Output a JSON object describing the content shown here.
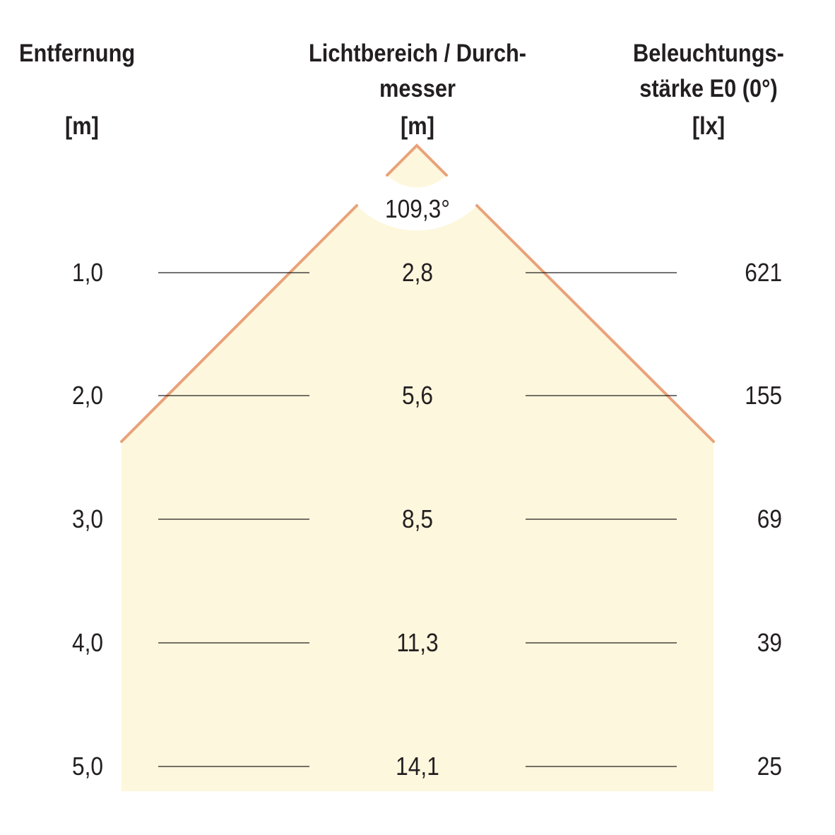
{
  "headers": {
    "distance": {
      "title": "Entfernung",
      "unit": "[m]"
    },
    "diameter": {
      "line1": "Lichtbereich / Durch-",
      "line2": "messer",
      "unit": "[m]"
    },
    "illuminance": {
      "line1": "Beleuchtungs-",
      "line2": "stärke E0 (0°)",
      "unit": "[lx]"
    }
  },
  "beam_angle": "109,3°",
  "rows": [
    {
      "distance": "1,0",
      "diameter": "2,8",
      "illuminance": "621"
    },
    {
      "distance": "2,0",
      "diameter": "5,6",
      "illuminance": "155"
    },
    {
      "distance": "3,0",
      "diameter": "8,5",
      "illuminance": "69"
    },
    {
      "distance": "4,0",
      "diameter": "11,3",
      "illuminance": "39"
    },
    {
      "distance": "5,0",
      "diameter": "14,1",
      "illuminance": "25"
    }
  ],
  "colors": {
    "cone_fill": "#fdf7dd",
    "cone_edge": "#e9a27a",
    "text": "#231f20"
  }
}
